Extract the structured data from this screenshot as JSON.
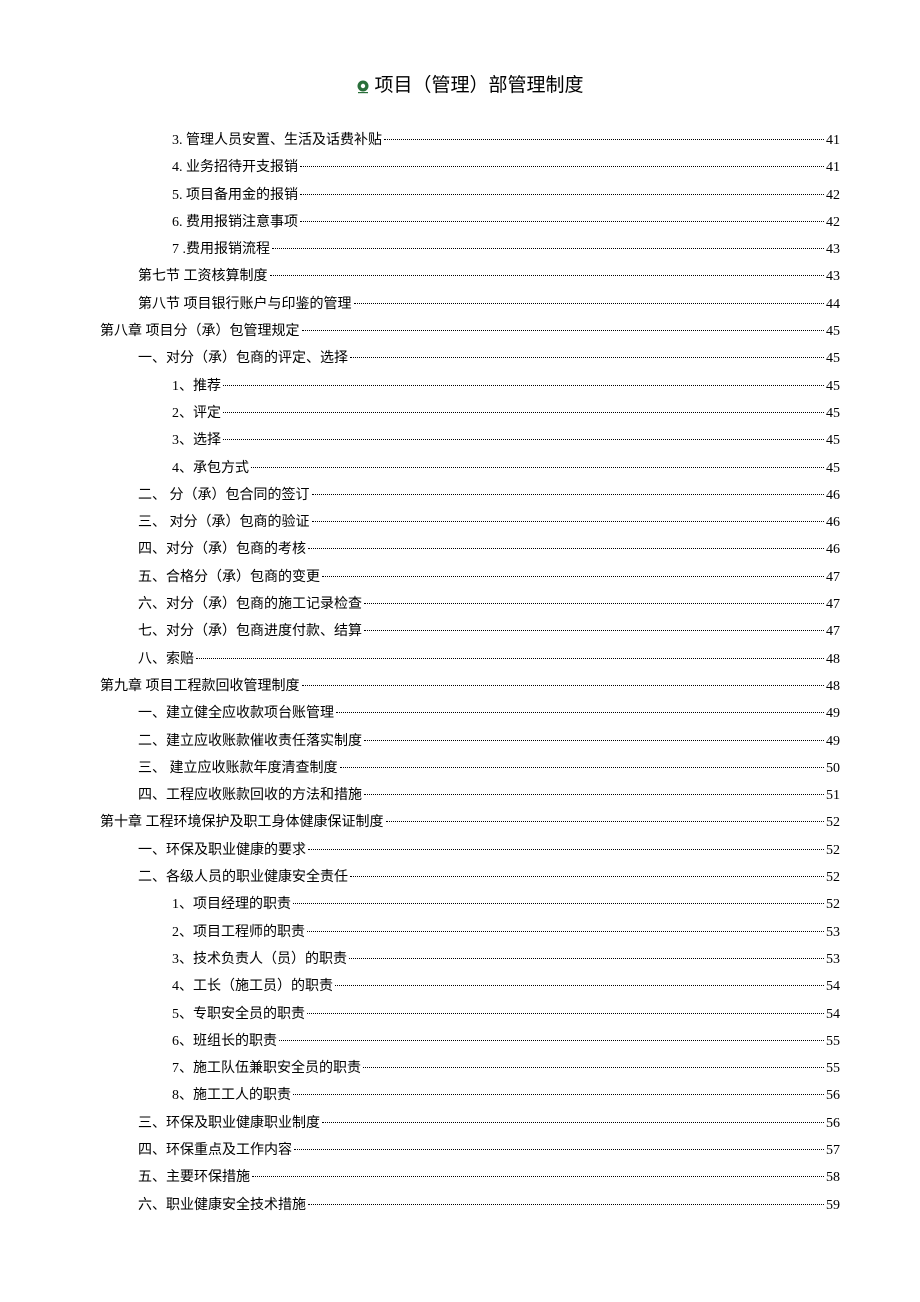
{
  "header": {
    "title": "项目（管理）部管理制度"
  },
  "logo": {
    "ring_color": "#2a6f3a",
    "center_color": "#ffffff"
  },
  "toc": [
    {
      "indent": 2,
      "label": "3. 管理人员安置、生活及话费补贴",
      "page": "41"
    },
    {
      "indent": 2,
      "label": "4. 业务招待开支报销",
      "page": "41"
    },
    {
      "indent": 2,
      "label": "5. 项目备用金的报销",
      "page": "42"
    },
    {
      "indent": 2,
      "label": "6. 费用报销注意事项",
      "page": "42"
    },
    {
      "indent": 2,
      "label": "7 .费用报销流程",
      "page": "43"
    },
    {
      "indent": 1,
      "label": "第七节 工资核算制度",
      "page": "43"
    },
    {
      "indent": 1,
      "label": "第八节 项目银行账户与印鉴的管理",
      "page": "44"
    },
    {
      "indent": 0,
      "label": "第八章 项目分（承）包管理规定",
      "page": "45"
    },
    {
      "indent": 1,
      "label": "一、对分（承）包商的评定、选择",
      "page": "45"
    },
    {
      "indent": 2,
      "label": "1、推荐",
      "page": "45"
    },
    {
      "indent": 2,
      "label": "2、评定",
      "page": "45"
    },
    {
      "indent": 2,
      "label": "3、选择",
      "page": "45"
    },
    {
      "indent": 2,
      "label": "4、承包方式",
      "page": "45"
    },
    {
      "indent": 1,
      "label": "二、 分（承）包合同的签订",
      "page": "46"
    },
    {
      "indent": 1,
      "label": "三、 对分（承）包商的验证",
      "page": "46"
    },
    {
      "indent": 1,
      "label": "四、对分（承）包商的考核",
      "page": "46"
    },
    {
      "indent": 1,
      "label": "五、合格分（承）包商的变更",
      "page": "47"
    },
    {
      "indent": 1,
      "label": "六、对分（承）包商的施工记录检查",
      "page": "47"
    },
    {
      "indent": 1,
      "label": "七、对分（承）包商进度付款、结算",
      "page": "47"
    },
    {
      "indent": 1,
      "label": "八、索赔",
      "page": "48"
    },
    {
      "indent": 0,
      "label": "第九章 项目工程款回收管理制度",
      "page": "48"
    },
    {
      "indent": 1,
      "label": "一、建立健全应收款项台账管理",
      "page": "49"
    },
    {
      "indent": 1,
      "label": "二、建立应收账款催收责任落实制度",
      "page": "49"
    },
    {
      "indent": 1,
      "label": "三、 建立应收账款年度清查制度",
      "page": "50"
    },
    {
      "indent": 1,
      "label": "四、工程应收账款回收的方法和措施",
      "page": "51"
    },
    {
      "indent": 0,
      "label": "第十章 工程环境保护及职工身体健康保证制度",
      "page": "52"
    },
    {
      "indent": 1,
      "label": "一、环保及职业健康的要求",
      "page": "52"
    },
    {
      "indent": 1,
      "label": "二、各级人员的职业健康安全责任",
      "page": "52"
    },
    {
      "indent": 2,
      "label": "1、项目经理的职责",
      "page": "52"
    },
    {
      "indent": 2,
      "label": "2、项目工程师的职责",
      "page": "53"
    },
    {
      "indent": 2,
      "label": "3、技术负责人（员）的职责",
      "page": "53"
    },
    {
      "indent": 2,
      "label": "4、工长（施工员）的职责",
      "page": "54"
    },
    {
      "indent": 2,
      "label": "5、专职安全员的职责",
      "page": "54"
    },
    {
      "indent": 2,
      "label": "6、班组长的职责",
      "page": "55"
    },
    {
      "indent": 2,
      "label": "7、施工队伍兼职安全员的职责",
      "page": "55"
    },
    {
      "indent": 2,
      "label": "8、施工工人的职责",
      "page": "56"
    },
    {
      "indent": 1,
      "label": "三、环保及职业健康职业制度",
      "page": "56"
    },
    {
      "indent": 1,
      "label": "四、环保重点及工作内容",
      "page": "57"
    },
    {
      "indent": 1,
      "label": "五、主要环保措施",
      "page": "58"
    },
    {
      "indent": 1,
      "label": "六、职业健康安全技术措施",
      "page": "59"
    }
  ]
}
